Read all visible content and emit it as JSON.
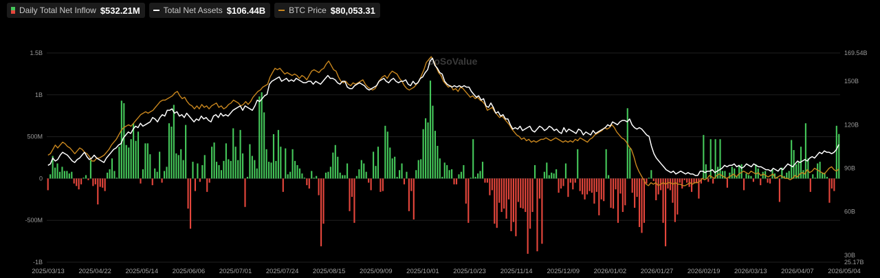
{
  "legend": [
    {
      "label": "Daily Total Net Inflow",
      "value": "$532.21M",
      "icon": "bar-swatch-icon"
    },
    {
      "label": "Total Net Assets",
      "value": "$106.44B",
      "icon": "white-line-swatch-icon"
    },
    {
      "label": "BTC Price",
      "value": "$80,053.31",
      "icon": "orange-line-swatch-icon"
    }
  ],
  "watermark": "SoSoValue",
  "colors": {
    "positive": "#45c75a",
    "negative": "#e5463c",
    "assets": "#ffffff",
    "btc": "#c8861e",
    "background": "#000000",
    "grid": "#1f1f1f"
  },
  "chart_data": {
    "type": "bar+line",
    "left_axis": {
      "ticks": [
        "1.5B",
        "1B",
        "500M",
        "0",
        "-500M",
        "-1B"
      ],
      "values": [
        1500,
        1000,
        500,
        0,
        -500,
        -1000
      ],
      "unit": "M USD"
    },
    "right_axis": {
      "ticks": [
        "169.54B",
        "150B",
        "120B",
        "90B",
        "60B",
        "30B",
        "25.17B"
      ],
      "values": [
        169.54,
        150,
        120,
        90,
        60,
        30,
        25.17
      ],
      "unit": "B USD"
    },
    "x_ticks": [
      "2025/03/13",
      "2025/04/22",
      "2025/05/14",
      "2025/06/06",
      "2025/07/01",
      "2025/07/24",
      "2025/08/15",
      "2025/09/09",
      "2025/10/01",
      "2025/10/23",
      "2025/11/14",
      "2025/12/09",
      "2026/01/02",
      "2026/01/27",
      "2026/02/19",
      "2026/03/13",
      "2026/04/07",
      "2026/05/04"
    ],
    "series": [
      {
        "name": "Daily Total Net Inflow",
        "kind": "bar",
        "values": [
          -140,
          50,
          270,
          130,
          180,
          80,
          140,
          90,
          90,
          60,
          80,
          -60,
          -90,
          -130,
          -70,
          10,
          40,
          -20,
          220,
          -90,
          -70,
          -310,
          -100,
          -110,
          -150,
          70,
          110,
          240,
          90,
          10,
          380,
          930,
          900,
          400,
          370,
          470,
          660,
          450,
          560,
          -60,
          110,
          420,
          420,
          290,
          -80,
          120,
          80,
          320,
          -50,
          90,
          140,
          660,
          620,
          880,
          300,
          280,
          350,
          220,
          640,
          -360,
          -600,
          200,
          -150,
          180,
          -40,
          160,
          280,
          -160,
          -50,
          380,
          430,
          200,
          160,
          100,
          210,
          420,
          230,
          210,
          600,
          380,
          220,
          580,
          300,
          -340,
          20,
          410,
          270,
          220,
          120,
          980,
          1030,
          790,
          350,
          200,
          190,
          530,
          210,
          580,
          380,
          -160,
          360,
          50,
          80,
          350,
          210,
          160,
          120,
          60,
          10,
          -80,
          -120,
          90,
          10,
          30,
          -200,
          -810,
          -540,
          70,
          80,
          140,
          310,
          400,
          260,
          70,
          40,
          40,
          180,
          -390,
          -220,
          -530,
          30,
          110,
          220,
          180,
          80,
          -50,
          -140,
          320,
          150,
          380,
          -160,
          -150,
          630,
          560,
          370,
          240,
          260,
          20,
          100,
          180,
          -70,
          80,
          -390,
          -150,
          -490,
          100,
          220,
          230,
          590,
          720,
          670,
          1170,
          870,
          570,
          390,
          240,
          20,
          190,
          160,
          100,
          110,
          -70,
          -70,
          50,
          80,
          160,
          -300,
          -530,
          10,
          470,
          20,
          60,
          90,
          200,
          -50,
          -50,
          -200,
          -140,
          -540,
          -590,
          -290,
          -400,
          -360,
          -480,
          -250,
          -630,
          -520,
          -690,
          -280,
          -350,
          -360,
          -400,
          -900,
          -600,
          -400,
          160,
          -870,
          -240,
          -780,
          80,
          190,
          40,
          70,
          60,
          110,
          -170,
          -120,
          -90,
          180,
          -220,
          -50,
          -130,
          -50,
          350,
          -150,
          -190,
          -250,
          -190,
          -150,
          -170,
          -300,
          -160,
          -440,
          -250,
          -270,
          350,
          40,
          -350,
          -360,
          -130,
          -530,
          -180,
          -400,
          -320,
          840,
          360,
          -170,
          -350,
          -220,
          -580,
          -650,
          -530,
          -60,
          10,
          100,
          -30,
          -260,
          -190,
          -140,
          -530,
          -810,
          -120,
          -140,
          -290,
          -520,
          -430,
          -50,
          -120,
          -20,
          -50,
          -100,
          -160,
          -60,
          -50,
          -240,
          -60,
          520,
          170,
          -40,
          470,
          -60,
          470,
          140,
          470,
          90,
          90,
          -110,
          70,
          140,
          120,
          30,
          150,
          170,
          -140,
          60,
          40,
          30,
          -40,
          170,
          120,
          -80,
          80,
          90,
          -50,
          -60,
          110,
          60,
          20,
          -280,
          130,
          30,
          70,
          90,
          460,
          340,
          170,
          200,
          380,
          100,
          660,
          240,
          -160,
          50,
          10,
          180,
          200,
          70,
          70,
          20,
          -290,
          -120,
          -150,
          630,
          532
        ]
      },
      {
        "name": "Total Net Assets",
        "kind": "line",
        "values": [
          92,
          93,
          97,
          95,
          96,
          99,
          101,
          100,
          99,
          97,
          95,
          94,
          96,
          97,
          99,
          101,
          98,
          96,
          97,
          99,
          97,
          96,
          95,
          94,
          97,
          99,
          101,
          103,
          104,
          106,
          107,
          111,
          113,
          115,
          114,
          117,
          119,
          118,
          121,
          119,
          120,
          121,
          122,
          125,
          124,
          122,
          125,
          127,
          126,
          130,
          130,
          131,
          128,
          129,
          126,
          127,
          125,
          128,
          126,
          124,
          122,
          124,
          123,
          126,
          124,
          125,
          123,
          122,
          126,
          127,
          125,
          128,
          126,
          127,
          126,
          128,
          130,
          131,
          132,
          133,
          130,
          133,
          132,
          131,
          130,
          133,
          137,
          136,
          138,
          140,
          141,
          148,
          150,
          151,
          152,
          153,
          150,
          151,
          152,
          150,
          151,
          150,
          152,
          151,
          150,
          149,
          149,
          150,
          150,
          148,
          150,
          149,
          148,
          150,
          152,
          154,
          152,
          152,
          151,
          149,
          148,
          150,
          150,
          146,
          145,
          145,
          147,
          148,
          149,
          148,
          147,
          145,
          144,
          145,
          146,
          147,
          150,
          151,
          152,
          150,
          149,
          151,
          152,
          150,
          149,
          150,
          150,
          151,
          148,
          147,
          150,
          148,
          149,
          152,
          153,
          156,
          158,
          164,
          166,
          161,
          159,
          156,
          155,
          150,
          148,
          147,
          146,
          147,
          146,
          147,
          146,
          147,
          146,
          146,
          143,
          141,
          139,
          140,
          137,
          138,
          133,
          132,
          135,
          132,
          128,
          129,
          126,
          127,
          124,
          124,
          120,
          117,
          118,
          117,
          119,
          116,
          117,
          118,
          119,
          116,
          115,
          117,
          119,
          118,
          116,
          117,
          119,
          118,
          116,
          117,
          115,
          114,
          118,
          115,
          117,
          116,
          115,
          114,
          117,
          116,
          113,
          115,
          114,
          113,
          116,
          114,
          115,
          116,
          117,
          118,
          120,
          119,
          122,
          121,
          120,
          122,
          123,
          123,
          122,
          124,
          120,
          118,
          117,
          118,
          117,
          115,
          113,
          112,
          105,
          100,
          97,
          95,
          93,
          91,
          89,
          88,
          87,
          88,
          86,
          87,
          88,
          87,
          86,
          87,
          86,
          86,
          85,
          85,
          88,
          88,
          87,
          88,
          88,
          89,
          87,
          88,
          89,
          90,
          92,
          91,
          92,
          92,
          93,
          91,
          92,
          90,
          91,
          93,
          92,
          91,
          93,
          92,
          91,
          91,
          90,
          89,
          89,
          88,
          90,
          89,
          88,
          90,
          89,
          91,
          93,
          92,
          91,
          93,
          95,
          94,
          95,
          96,
          95,
          97,
          98,
          97,
          99,
          101,
          100,
          102,
          101,
          101,
          100,
          101,
          103,
          106.44
        ]
      },
      {
        "name": "BTC Price",
        "kind": "line",
        "values": [
          99,
          100,
          103,
          106,
          104,
          106,
          108,
          107,
          105,
          104,
          102,
          100,
          102,
          104,
          103,
          101,
          100,
          98,
          95,
          95,
          97,
          97,
          98,
          99,
          101,
          103,
          106,
          108,
          110,
          113,
          116,
          118,
          119,
          120,
          119,
          121,
          123,
          125,
          127,
          128,
          129,
          128,
          129,
          130,
          132,
          134,
          136,
          137,
          137,
          138,
          139,
          140,
          142,
          143,
          140,
          138,
          139,
          136,
          134,
          133,
          131,
          133,
          131,
          134,
          132,
          133,
          131,
          133,
          134,
          135,
          132,
          133,
          131,
          132,
          134,
          135,
          137,
          136,
          135,
          133,
          134,
          136,
          134,
          136,
          139,
          141,
          143,
          144,
          146,
          147,
          148,
          153,
          156,
          159,
          158,
          159,
          157,
          155,
          156,
          155,
          154,
          155,
          154,
          152,
          154,
          153,
          151,
          154,
          157,
          158,
          157,
          156,
          158,
          159,
          162,
          164,
          161,
          158,
          157,
          153,
          150,
          149,
          150,
          148,
          147,
          149,
          148,
          149,
          150,
          151,
          148,
          146,
          145,
          144,
          145,
          148,
          151,
          153,
          154,
          152,
          155,
          157,
          156,
          155,
          152,
          150,
          147,
          145,
          144,
          145,
          146,
          148,
          150,
          154,
          158,
          163,
          165,
          167,
          164,
          160,
          156,
          154,
          150,
          148,
          146,
          147,
          144,
          145,
          143,
          146,
          145,
          143,
          141,
          139,
          140,
          138,
          139,
          137,
          136,
          134,
          130,
          131,
          132,
          129,
          127,
          125,
          126,
          124,
          122,
          120,
          117,
          115,
          113,
          112,
          110,
          111,
          109,
          110,
          108,
          109,
          108,
          109,
          110,
          110,
          111,
          110,
          109,
          110,
          111,
          110,
          109,
          108,
          109,
          108,
          109,
          108,
          110,
          109,
          111,
          110,
          109,
          108,
          110,
          111,
          113,
          114,
          115,
          116,
          118,
          117,
          118,
          120,
          118,
          115,
          113,
          111,
          110,
          108,
          105,
          103,
          98,
          92,
          88,
          85,
          82,
          79,
          78,
          80,
          79,
          80,
          78,
          79,
          80,
          79,
          80,
          80,
          79,
          80,
          79,
          79,
          78,
          78,
          79,
          80,
          79,
          80,
          80,
          81,
          83,
          82,
          83,
          85,
          84,
          83,
          85,
          86,
          85,
          84,
          83,
          84,
          85,
          86,
          84,
          86,
          87,
          88,
          87,
          86,
          88,
          87,
          86,
          87,
          85,
          86,
          85,
          84,
          85,
          86,
          83,
          84,
          85,
          84,
          83,
          83,
          82,
          83,
          85,
          84,
          86,
          87,
          86,
          89,
          87,
          88,
          90,
          89,
          88,
          87,
          86,
          88,
          90,
          91,
          89,
          88,
          89.5
        ]
      }
    ],
    "grid": true,
    "legend_position": "top-left"
  }
}
